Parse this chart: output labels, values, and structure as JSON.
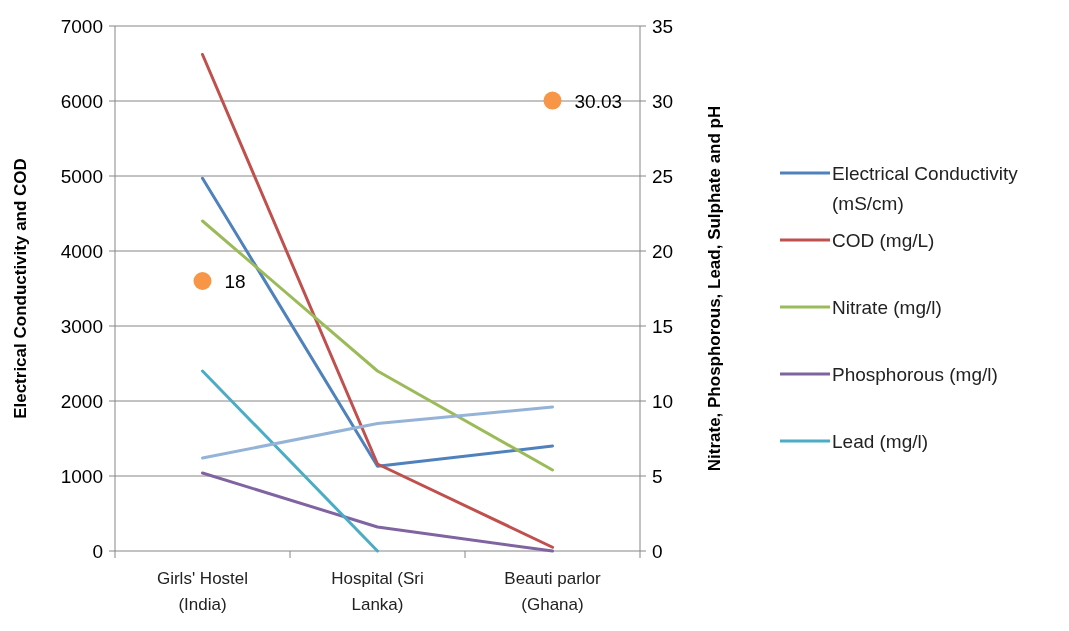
{
  "chart_data": {
    "type": "line",
    "categories": [
      "Girls' Hostel (India)",
      "Hospital (Sri Lanka)",
      "Beauti parlor (Ghana)"
    ],
    "ylabel": "Electrical Conductivity and COD",
    "y2label": "Nitrate, Phosphorous, Lead, Sulphate and pH",
    "ylim": [
      0,
      7000
    ],
    "yticks": [
      0,
      1000,
      2000,
      3000,
      4000,
      5000,
      6000,
      7000
    ],
    "y2lim": [
      0,
      35
    ],
    "y2ticks": [
      0,
      5,
      10,
      15,
      20,
      25,
      30,
      35
    ],
    "grid": "y",
    "legend": "right",
    "series": [
      {
        "name": "Electrical Conductivity (mS/cm)",
        "color": "#4f81bd",
        "values": [
          4970,
          1130,
          1400
        ]
      },
      {
        "name": "COD (mg/L)",
        "color": "#c0504d",
        "values": [
          6620,
          1160,
          50
        ]
      },
      {
        "name": "Nitrate (mg/l)",
        "color": "#9bbb59",
        "axis": "y2",
        "values": [
          22,
          12,
          5.4
        ]
      },
      {
        "name": "Phosphorous (mg/l)",
        "color": "#8064a2",
        "axis": "y2",
        "values": [
          5.2,
          1.6,
          0
        ]
      },
      {
        "name": "Lead (mg/l)",
        "color": "#4bacc6",
        "axis": "y2",
        "values": [
          12,
          0,
          null
        ]
      },
      {
        "color": "#95b3d7",
        "axis": "y2",
        "values": [
          6.2,
          8.5,
          9.6
        ]
      },
      {
        "type": "scatter",
        "color": "#f79646",
        "axis": "y2",
        "values": [
          18,
          null,
          30.03
        ],
        "value_labels": [
          "18",
          null,
          "30.03"
        ]
      }
    ]
  }
}
